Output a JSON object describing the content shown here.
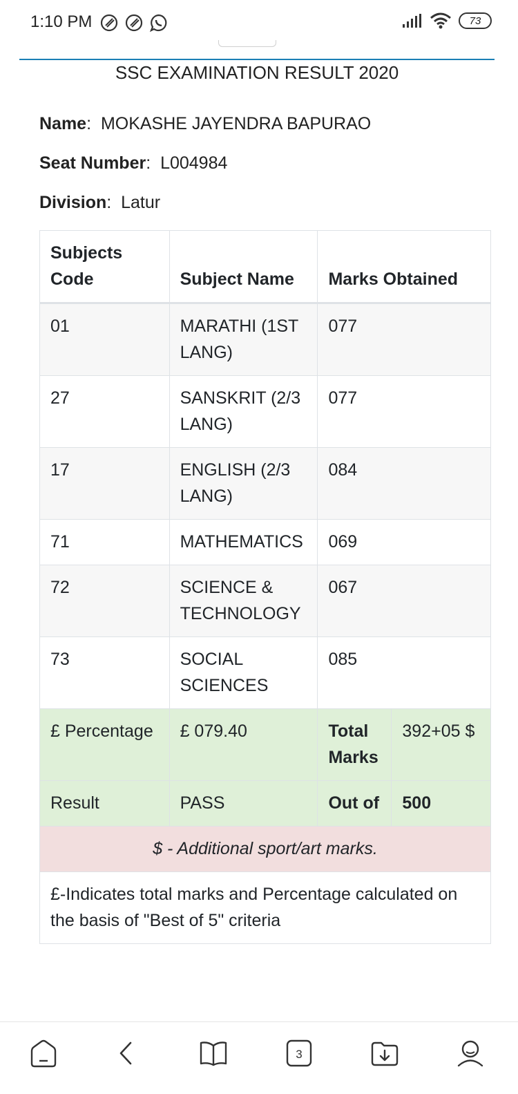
{
  "status_bar": {
    "time": "1:10 PM",
    "battery": "73"
  },
  "page": {
    "title": "SSC EXAMINATION RESULT 2020"
  },
  "student": {
    "name_label": "Name",
    "name": "MOKASHE JAYENDRA BAPURAO",
    "seat_label": "Seat Number",
    "seat": "L004984",
    "division_label": "Division",
    "division": "Latur"
  },
  "table": {
    "headers": [
      "Subjects Code",
      "Subject Name",
      "Marks Obtained"
    ],
    "rows": [
      {
        "code": "01",
        "name": "MARATHI (1ST LANG)",
        "marks": "077"
      },
      {
        "code": "27",
        "name": "SANSKRIT (2/3 LANG)",
        "marks": "077"
      },
      {
        "code": "17",
        "name": "ENGLISH (2/3 LANG)",
        "marks": "084"
      },
      {
        "code": "71",
        "name": "MATHEMATICS",
        "marks": "069"
      },
      {
        "code": "72",
        "name": "SCIENCE & TECHNOLOGY",
        "marks": "067"
      },
      {
        "code": "73",
        "name": "SOCIAL SCIENCES",
        "marks": "085"
      }
    ],
    "summary": {
      "percentage_label": "£ Percentage",
      "percentage": "£ 079.40",
      "total_label": "Total Marks",
      "total": "392+05 $",
      "result_label": "Result",
      "result": "PASS",
      "out_of_label": "Out of",
      "out_of": "500"
    },
    "note_additional": "$ - Additional sport/art marks.",
    "note_best_of": "£-Indicates total marks and Percentage calculated on the basis of \"Best of 5\" criteria"
  },
  "nav": {
    "tab_count": "3",
    "icons": [
      "home-icon",
      "back-icon",
      "bookmarks-icon",
      "tabs-icon",
      "downloads-icon",
      "profile-icon"
    ]
  },
  "colors": {
    "accent_rule": "#1a7fb5",
    "success_row": "#dff0d8",
    "danger_row": "#f2dede"
  }
}
